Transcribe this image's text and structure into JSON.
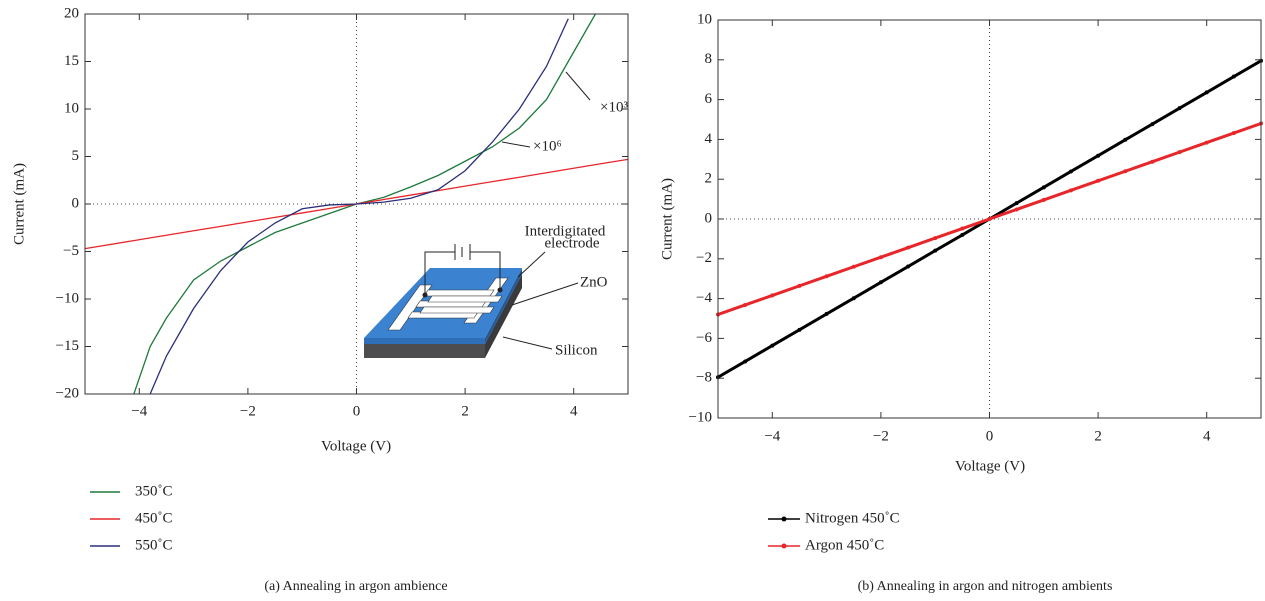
{
  "chart_data": [
    {
      "type": "line",
      "x_label": "Voltage (V)",
      "y_label": "Current (mA)",
      "caption": "(a)  Annealing in argon ambience",
      "x": [
        -5,
        -4.1,
        -3.8,
        -3.5,
        -3,
        -2.5,
        -2,
        -1.5,
        -1,
        -0.5,
        0,
        0.5,
        1,
        1.5,
        2,
        2.5,
        3,
        3.5,
        3.9,
        4,
        4.4,
        5
      ],
      "series": [
        {
          "name": "350˚C",
          "color": "#1e7a3c",
          "values": [
            null,
            -20,
            -15,
            -12,
            -8,
            -6,
            -4.5,
            -3,
            -2,
            -1,
            0,
            0.7,
            1.8,
            3,
            4.5,
            6,
            8,
            11,
            15,
            16,
            20,
            null
          ]
        },
        {
          "name": "450˚C",
          "color": "#e8262a",
          "values": [
            -4.7,
            -3.85,
            -3.57,
            -3.29,
            -2.82,
            -2.35,
            -1.88,
            -1.41,
            -0.94,
            -0.47,
            0,
            0.47,
            0.94,
            1.41,
            1.88,
            2.35,
            2.82,
            3.29,
            3.67,
            3.76,
            4.14,
            4.7
          ]
        },
        {
          "name": "550˚C",
          "color": "#2b2f7a",
          "values": [
            null,
            null,
            -20,
            -16,
            -11,
            -7,
            -4,
            -2,
            -0.5,
            -0.1,
            0,
            0.2,
            0.6,
            1.5,
            3.5,
            6.5,
            10,
            14.5,
            19.5,
            null,
            null,
            null
          ]
        }
      ],
      "xlim": [
        -5,
        5
      ],
      "ylim": [
        -20,
        20
      ],
      "xticks": [
        {
          "value": -4,
          "label": "−4"
        },
        {
          "value": -2,
          "label": "−2"
        },
        0,
        2,
        4
      ],
      "yticks": [
        {
          "value": -20,
          "label": "−20"
        },
        {
          "value": -15,
          "label": "−15"
        },
        {
          "value": -10,
          "label": "−10"
        },
        {
          "value": -5,
          "label": "−5"
        },
        0,
        5,
        10,
        15,
        20
      ],
      "legend": "below",
      "annotations": [
        "×10³",
        "×10⁶",
        "Interdigitated",
        "electrode",
        "ZnO",
        "Silicon"
      ]
    },
    {
      "type": "line",
      "x_label": "Voltage (V)",
      "y_label": "Current (mA)",
      "caption": "(b)  Annealing in argon and nitrogen ambients",
      "x": [
        -5,
        -4.5,
        -4,
        -3.5,
        -3,
        -2.5,
        -2,
        -1.5,
        -1,
        -0.5,
        0,
        0.5,
        1,
        1.5,
        2,
        2.5,
        3,
        3.5,
        4,
        4.5,
        5
      ],
      "series": [
        {
          "name": "Nitrogen 450˚C",
          "color": "#000000",
          "values": [
            -7.95,
            -7.16,
            -6.36,
            -5.57,
            -4.77,
            -3.98,
            -3.18,
            -2.39,
            -1.59,
            -0.8,
            0,
            0.8,
            1.59,
            2.39,
            3.18,
            3.98,
            4.77,
            5.57,
            6.36,
            7.16,
            7.95
          ]
        },
        {
          "name": "Argon 450˚C",
          "color": "#e8262a",
          "values": [
            -4.8,
            -4.32,
            -3.84,
            -3.36,
            -2.88,
            -2.4,
            -1.92,
            -1.44,
            -0.96,
            -0.48,
            0,
            0.48,
            0.96,
            1.44,
            1.92,
            2.4,
            2.88,
            3.36,
            3.84,
            4.32,
            4.8
          ]
        }
      ],
      "xlim": [
        -5,
        5
      ],
      "ylim": [
        -10,
        10
      ],
      "xticks": [
        {
          "value": -4,
          "label": "−4"
        },
        {
          "value": -2,
          "label": "−2"
        },
        0,
        2,
        4
      ],
      "yticks": [
        {
          "value": -10,
          "label": "−10"
        },
        {
          "value": -8,
          "label": "−8"
        },
        {
          "value": -6,
          "label": "−6"
        },
        {
          "value": -4,
          "label": "−4"
        },
        {
          "value": -2,
          "label": "−2"
        },
        0,
        2,
        4,
        6,
        8,
        10
      ],
      "marker": "circle",
      "legend": "below"
    }
  ]
}
